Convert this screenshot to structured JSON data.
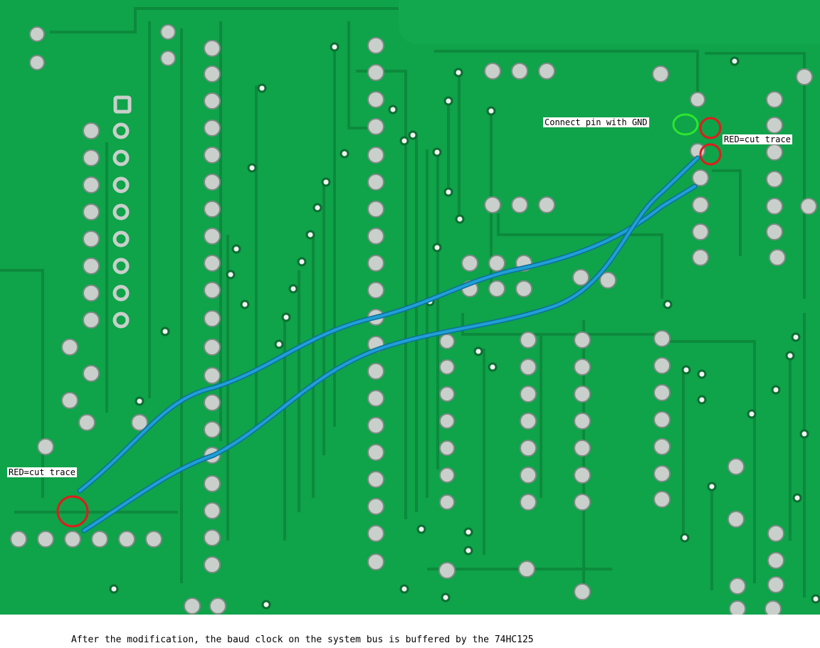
{
  "photo": {
    "subject": "pcb-back-side-with-blue-jumper-wires",
    "colors": {
      "board": "#0fa34a",
      "trace": "#0c8a3c",
      "pad": "#c9cfcb",
      "wire": "#1f9fd6",
      "cut_marker": "#e11b1b",
      "gnd_marker": "#2ee62e"
    }
  },
  "annotations": {
    "gnd_label": "Connect pin with GND",
    "cut_label_top": "RED=cut trace",
    "cut_label_bottom": "RED=cut trace"
  },
  "caption": "After the modification, the baud clock on the system bus is buffered by the 74HC125"
}
